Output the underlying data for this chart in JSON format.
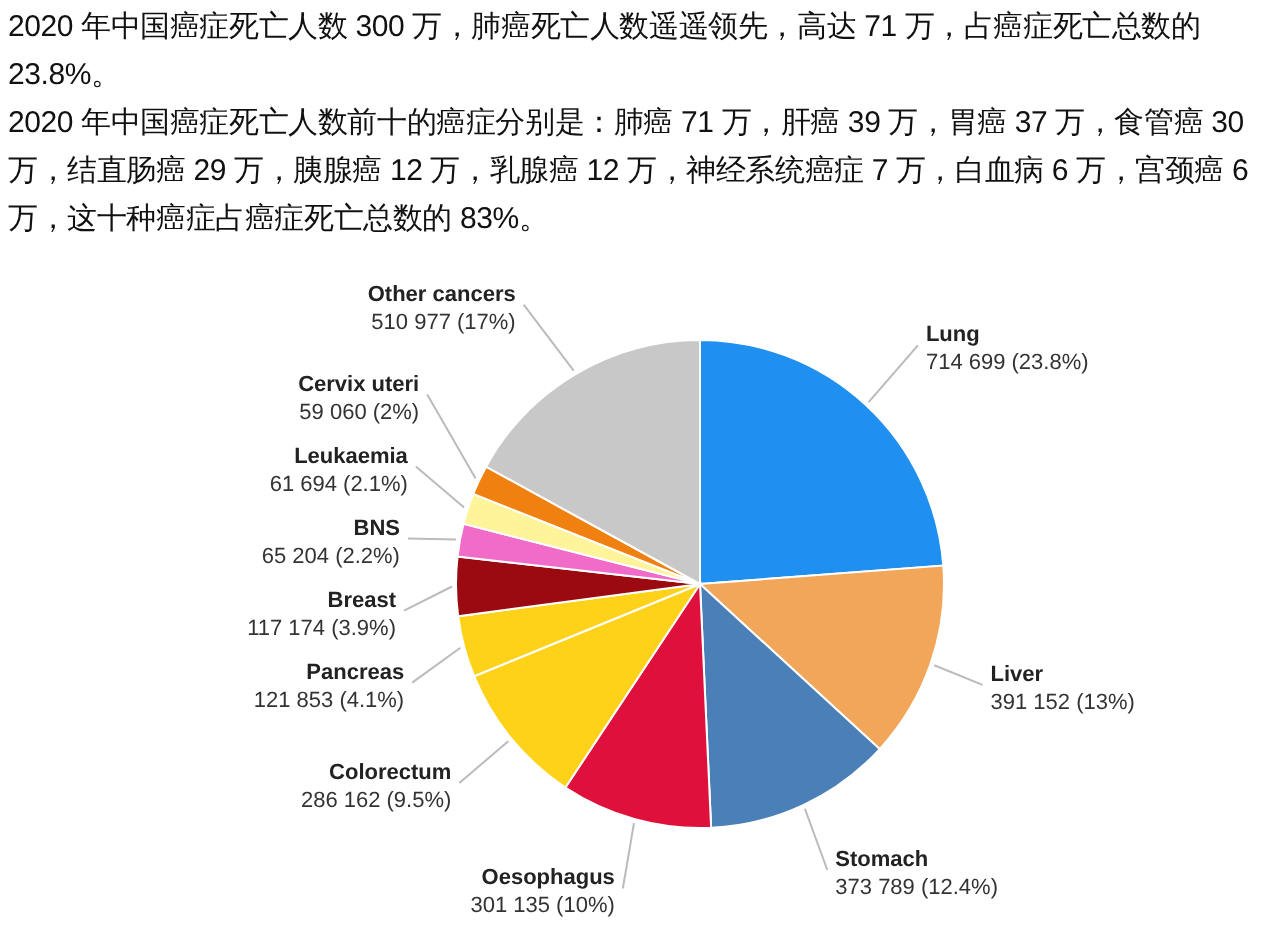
{
  "chart_data": {
    "type": "pie",
    "title": "2020 年中国癌症死亡人数 300 万，肺癌死亡人数遥遥领先，高达 71 万，占癌症死亡总数的 23.8%。",
    "subtitle": "2020 年中国癌症死亡人数前十的癌症分别是：肺癌 71 万，肝癌 39 万，胃癌 37 万，食管癌 30 万，结直肠癌 29 万，胰腺癌 12 万，乳腺癌 12 万，神经系统癌症 7 万，白血病 6 万，宫颈癌 6 万，这十种癌症占癌症死亡总数的 83%。",
    "categories": [
      "Lung",
      "Liver",
      "Stomach",
      "Oesophagus",
      "Colorectum",
      "Pancreas",
      "Breast",
      "BNS",
      "Leukaemia",
      "Cervix uteri",
      "Other cancers"
    ],
    "values": [
      714699,
      391152,
      373789,
      301135,
      286162,
      121853,
      117174,
      65204,
      61694,
      59060,
      510977
    ],
    "value_labels": [
      "714 699 (23.8%)",
      "391 152 (13%)",
      "373 789 (12.4%)",
      "301 135 (10%)",
      "286 162 (9.5%)",
      "121 853 (4.1%)",
      "117 174 (3.9%)",
      "65 204 (2.2%)",
      "61 694 (2.1%)",
      "59 060 (2%)",
      "510 977 (17%)"
    ],
    "colors": [
      "#1f8ff0",
      "#f2a65a",
      "#4a7fb8",
      "#e0103c",
      "#ffd21a",
      "#ffd21a",
      "#9a0a10",
      "#f06cc8",
      "#fff49a",
      "#f08010",
      "#c8c8c8"
    ]
  }
}
